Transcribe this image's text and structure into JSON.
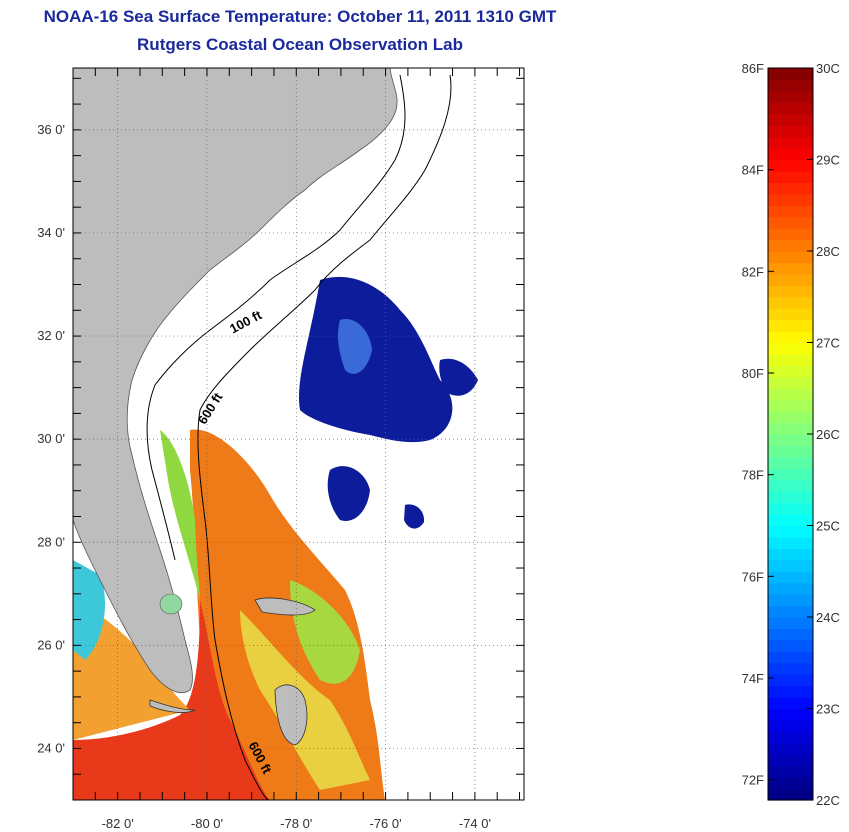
{
  "title": {
    "line1": "NOAA-16 Sea Surface Temperature:  October 11, 2011 1310 GMT",
    "line2": "Rutgers Coastal Ocean Observation Lab"
  },
  "map": {
    "lat_range": [
      23,
      37.2
    ],
    "lon_range": [
      -83,
      -72.9
    ],
    "lat_labels": [
      "24 0'",
      "26 0'",
      "28 0'",
      "30 0'",
      "32 0'",
      "34 0'",
      "36 0'"
    ],
    "lon_labels": [
      "-82 0'",
      "-80 0'",
      "-78 0'",
      "-76 0'",
      "-74 0'"
    ],
    "contour_labels": [
      "100 ft",
      "600 ft",
      "600 ft"
    ],
    "colors": {
      "land": "#bdbdbd",
      "ocean_nodata": "#ffffff",
      "warm": "#f06a10",
      "hot": "#e8281a",
      "cold": "#0a1a9c"
    }
  },
  "colorbar": {
    "celsius_labels": [
      "30C",
      "29C",
      "28C",
      "27C",
      "26C",
      "25C",
      "24C",
      "23C",
      "22C"
    ],
    "fahrenheit_labels": [
      "86F",
      "84F",
      "82F",
      "80F",
      "78F",
      "76F",
      "74F",
      "72F"
    ],
    "celsius_min": 22,
    "celsius_max": 30,
    "colormap": "jet"
  }
}
